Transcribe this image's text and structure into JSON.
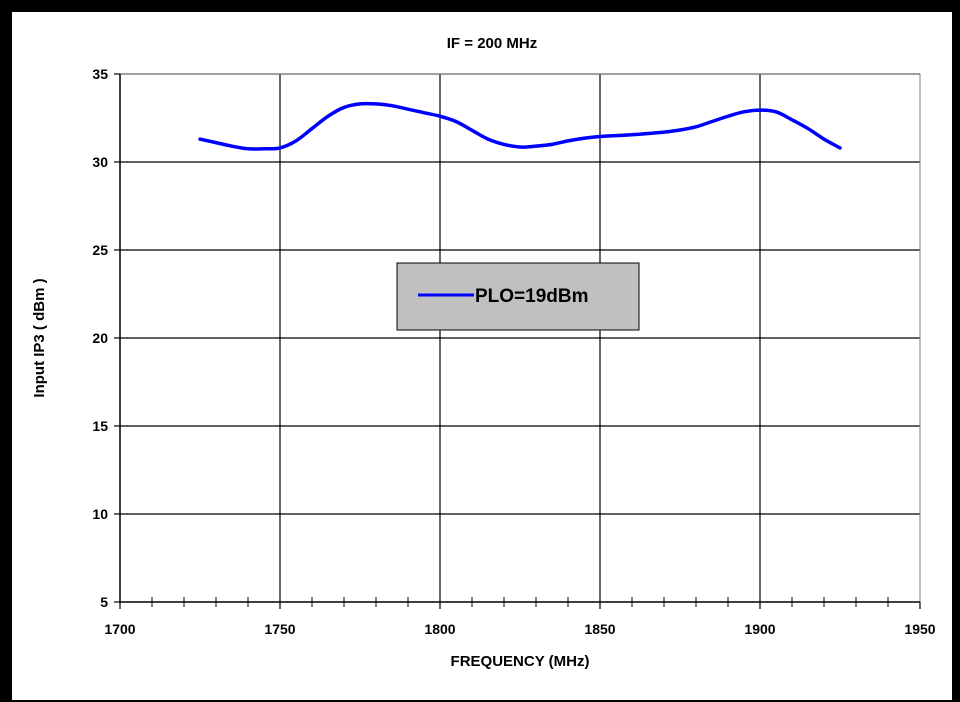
{
  "chart_data": {
    "type": "line",
    "title": "IF = 200 MHz",
    "xlabel": "FREQUENCY (MHz)",
    "ylabel": "Input IP3 ( dBm )",
    "xlim": [
      1700,
      1950
    ],
    "ylim": [
      5,
      35
    ],
    "x_ticks": [
      1700,
      1750,
      1800,
      1850,
      1900,
      1950
    ],
    "y_ticks": [
      5,
      10,
      15,
      20,
      25,
      30,
      35
    ],
    "x_minor_step": 10,
    "grid": true,
    "legend_position": "center",
    "series": [
      {
        "name": "PLO=19dBm",
        "color": "#0000ff",
        "x": [
          1725,
          1730,
          1735,
          1740,
          1745,
          1750,
          1755,
          1760,
          1765,
          1770,
          1775,
          1780,
          1785,
          1790,
          1795,
          1800,
          1805,
          1810,
          1815,
          1820,
          1825,
          1830,
          1835,
          1840,
          1845,
          1850,
          1855,
          1860,
          1865,
          1870,
          1875,
          1880,
          1885,
          1890,
          1895,
          1900,
          1905,
          1910,
          1915,
          1920,
          1925
        ],
        "y": [
          31.3,
          31.1,
          30.9,
          30.75,
          30.75,
          30.8,
          31.2,
          31.9,
          32.6,
          33.1,
          33.3,
          33.3,
          33.2,
          33.0,
          32.8,
          32.6,
          32.3,
          31.8,
          31.3,
          31.0,
          30.85,
          30.9,
          31.0,
          31.2,
          31.35,
          31.45,
          31.5,
          31.55,
          31.62,
          31.7,
          31.82,
          32.0,
          32.3,
          32.6,
          32.85,
          32.95,
          32.85,
          32.4,
          31.9,
          31.3,
          30.8
        ]
      }
    ]
  }
}
